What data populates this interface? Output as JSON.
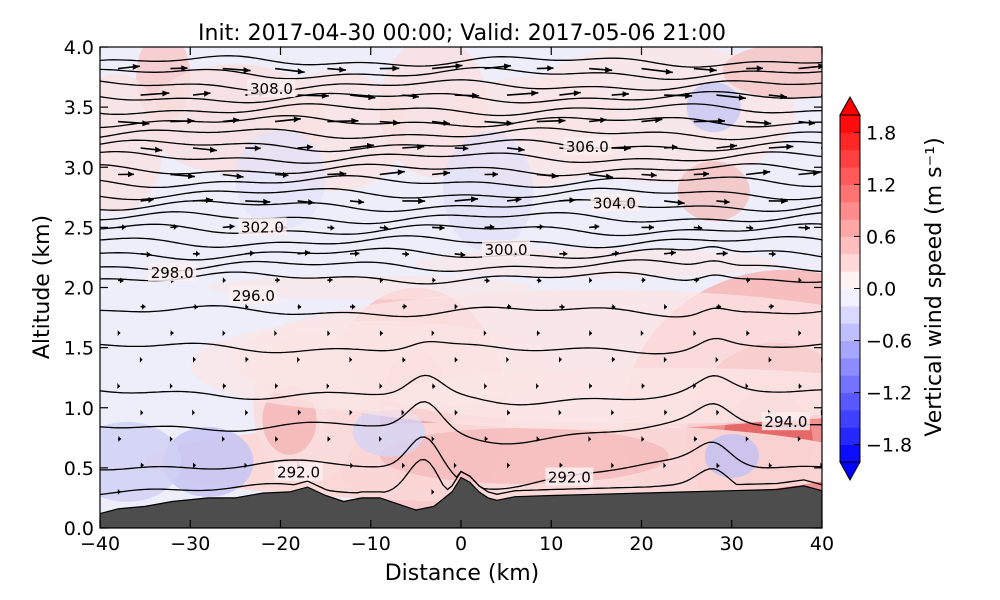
{
  "chart_data": {
    "type": "contour",
    "title": "Init: 2017-04-30 00:00; Valid: 2017-05-06 21:00",
    "xlabel": "Distance (km)",
    "ylabel": "Altitude (km)",
    "xlim": [
      -40,
      40
    ],
    "ylim": [
      0.0,
      4.0
    ],
    "xticks": [
      "−40",
      "−30",
      "−20",
      "−10",
      "0",
      "10",
      "20",
      "30",
      "40"
    ],
    "yticks": [
      "0.0",
      "0.5",
      "1.0",
      "1.5",
      "2.0",
      "2.5",
      "3.0",
      "3.5",
      "4.0"
    ],
    "colorbar": {
      "label": "Vertical wind speed (m s⁻¹)",
      "range": [
        -2.0,
        2.0
      ],
      "ticks": [
        "1.8",
        "1.2",
        "0.6",
        "0.0",
        "−0.6",
        "−1.2",
        "−1.8"
      ],
      "colormap": "bwr"
    },
    "contour_labels": [
      {
        "text": "308.0",
        "x": -21,
        "y": 3.65
      },
      {
        "text": "306.0",
        "x": 14,
        "y": 3.17
      },
      {
        "text": "304.0",
        "x": 17,
        "y": 2.7
      },
      {
        "text": "302.0",
        "x": -22,
        "y": 2.5
      },
      {
        "text": "300.0",
        "x": 5,
        "y": 2.31
      },
      {
        "text": "298.0",
        "x": -32,
        "y": 2.12
      },
      {
        "text": "296.0",
        "x": -23,
        "y": 1.93
      },
      {
        "text": "294.0",
        "x": 36,
        "y": 0.88
      },
      {
        "text": "292.0",
        "x": -18,
        "y": 0.46
      },
      {
        "text": "292.0",
        "x": 12,
        "y": 0.42
      }
    ],
    "terrain": {
      "x": [
        -40,
        -38,
        -35,
        -32,
        -28,
        -25,
        -22,
        -19,
        -17,
        -15,
        -13,
        -11,
        -9,
        -7,
        -5,
        -3,
        -1,
        0,
        1,
        2,
        3,
        4,
        6,
        10,
        15,
        20,
        25,
        30,
        35,
        38,
        40
      ],
      "y": [
        0.12,
        0.16,
        0.18,
        0.22,
        0.25,
        0.25,
        0.29,
        0.3,
        0.34,
        0.27,
        0.22,
        0.25,
        0.25,
        0.2,
        0.15,
        0.18,
        0.3,
        0.42,
        0.38,
        0.3,
        0.25,
        0.23,
        0.26,
        0.27,
        0.28,
        0.29,
        0.3,
        0.31,
        0.32,
        0.35,
        0.31
      ]
    }
  }
}
